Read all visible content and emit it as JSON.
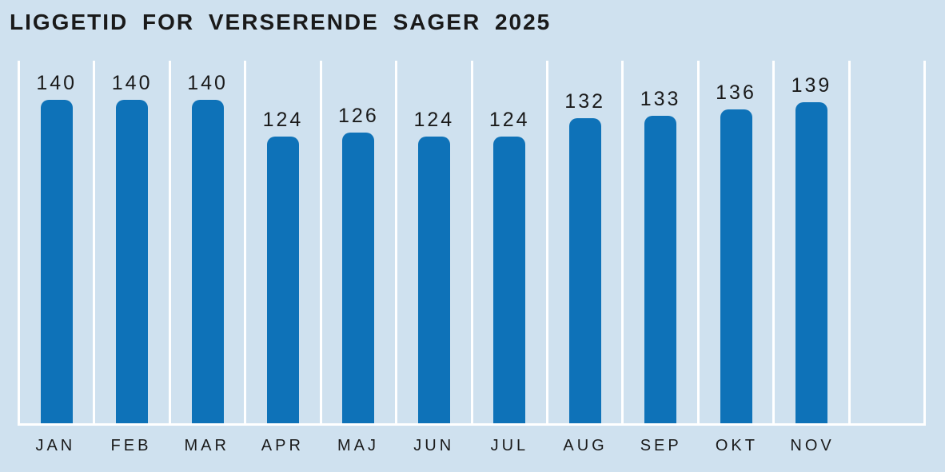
{
  "page": {
    "background_color": "#CFE1EF"
  },
  "chart_data": {
    "type": "bar",
    "title": "LIGGETID FOR VERSERENDE SAGER 2025",
    "categories": [
      "JAN",
      "FEB",
      "MAR",
      "APR",
      "MAJ",
      "JUN",
      "JUL",
      "AUG",
      "SEP",
      "OKT",
      "NOV"
    ],
    "values": [
      140,
      140,
      140,
      124,
      126,
      124,
      124,
      132,
      133,
      136,
      139
    ],
    "xlabel": "",
    "ylabel": "",
    "ylim": [
      0,
      157
    ],
    "grid": "vertical white column separators and white baseline, no horizontal gridlines",
    "legend": "none",
    "value_labels": "above-bars",
    "trailing_empty_columns": 1,
    "bar_color": "#0E72B8",
    "background_color": "#CFE1EF",
    "text_color": "#1A1A1A",
    "gridline_color": "#FFFFFF"
  }
}
